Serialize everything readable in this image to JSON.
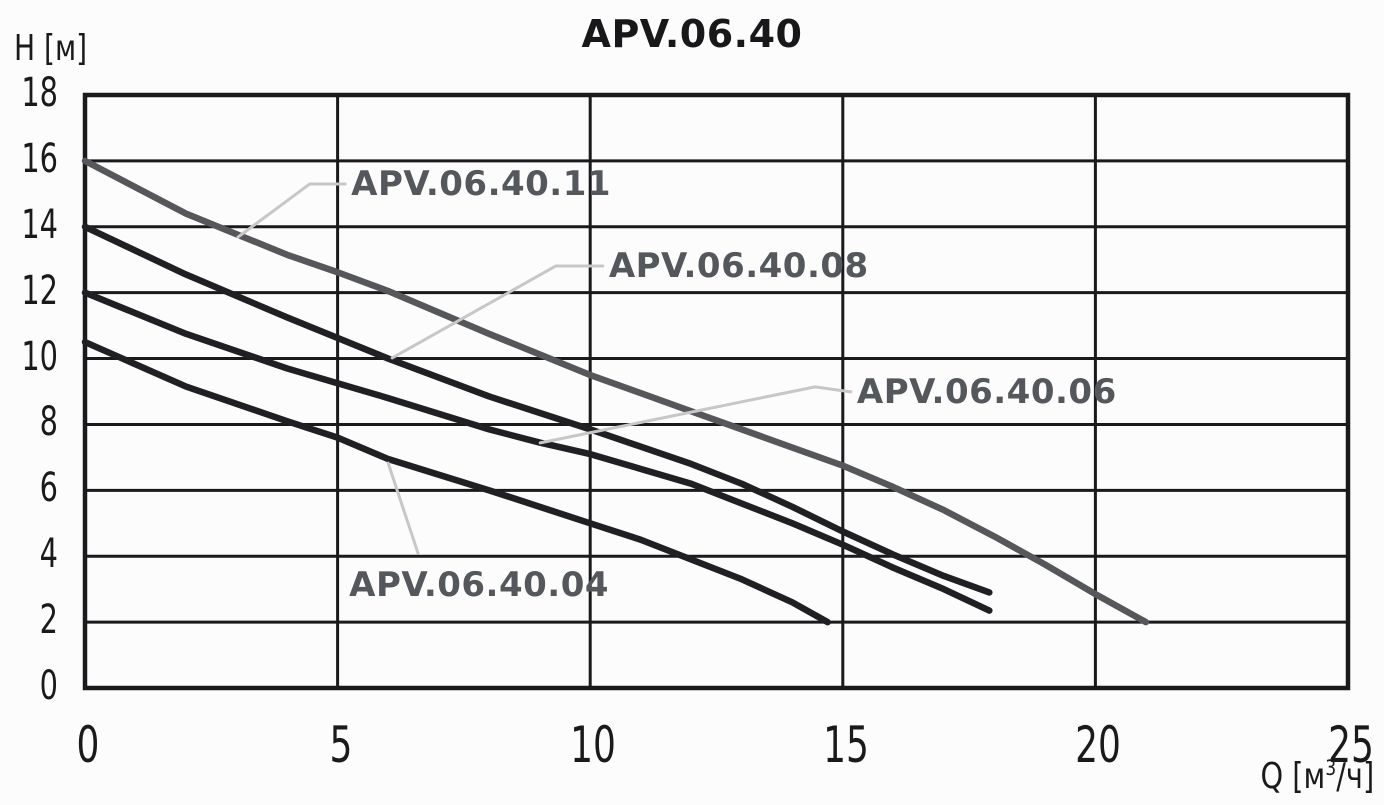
{
  "header": {
    "title": "APV.06.40"
  },
  "axes": {
    "y_label": "H [м]",
    "x_label_prefix": "Q [м",
    "x_label_sup": "3",
    "x_label_suffix": "/ч]"
  },
  "chart_data": {
    "type": "line",
    "title": "APV.06.40",
    "xlabel": "Q [м³/ч]",
    "ylabel": "H [м]",
    "xlim": [
      0,
      25
    ],
    "ylim": [
      0,
      18
    ],
    "x_ticks": [
      0,
      5,
      10,
      15,
      20,
      25
    ],
    "y_ticks": [
      18,
      16,
      14,
      12,
      10,
      8,
      6,
      4,
      2,
      0
    ],
    "grid": true,
    "legend_position": "inline-annotations",
    "colors": {
      "grid": "#1a1a1c",
      "border": "#1a1a1c",
      "leader": "#c7c7c7",
      "annotation_text": "#54575c",
      "tick_text": "#1a1a1c"
    },
    "series": [
      {
        "name": "APV.06.40.11",
        "color": "#56575b",
        "width": 6.5,
        "points": [
          [
            0,
            16
          ],
          [
            2,
            14.4
          ],
          [
            4,
            13.15
          ],
          [
            5,
            12.62
          ],
          [
            6,
            12.05
          ],
          [
            8,
            10.75
          ],
          [
            10,
            9.5
          ],
          [
            12,
            8.4
          ],
          [
            14,
            7.3
          ],
          [
            15,
            6.75
          ],
          [
            16,
            6.1
          ],
          [
            17,
            5.4
          ],
          [
            18,
            4.6
          ],
          [
            19,
            3.75
          ],
          [
            20,
            2.85
          ],
          [
            21,
            2.0
          ]
        ]
      },
      {
        "name": "APV.06.40.08",
        "color": "#202024",
        "width": 6.5,
        "points": [
          [
            0,
            14
          ],
          [
            2,
            12.55
          ],
          [
            4,
            11.25
          ],
          [
            6,
            10.0
          ],
          [
            8,
            8.85
          ],
          [
            10,
            7.85
          ],
          [
            12,
            6.8
          ],
          [
            13,
            6.2
          ],
          [
            14,
            5.5
          ],
          [
            15,
            4.75
          ],
          [
            16,
            4.05
          ],
          [
            17,
            3.4
          ],
          [
            17.9,
            2.9
          ]
        ]
      },
      {
        "name": "APV.06.40.06",
        "color": "#202024",
        "width": 6.5,
        "points": [
          [
            0,
            12
          ],
          [
            2,
            10.75
          ],
          [
            4,
            9.7
          ],
          [
            5,
            9.25
          ],
          [
            6,
            8.8
          ],
          [
            8,
            7.85
          ],
          [
            9,
            7.45
          ],
          [
            10,
            7.1
          ],
          [
            12,
            6.2
          ],
          [
            14,
            5.0
          ],
          [
            15,
            4.35
          ],
          [
            16,
            3.65
          ],
          [
            17,
            3.0
          ],
          [
            17.9,
            2.35
          ]
        ]
      },
      {
        "name": "APV.06.40.04",
        "color": "#202024",
        "width": 6.5,
        "points": [
          [
            0,
            10.5
          ],
          [
            2,
            9.15
          ],
          [
            4,
            8.1
          ],
          [
            5,
            7.6
          ],
          [
            6,
            6.95
          ],
          [
            8,
            6.0
          ],
          [
            10,
            5.0
          ],
          [
            11,
            4.5
          ],
          [
            12,
            3.9
          ],
          [
            13,
            3.3
          ],
          [
            14,
            2.6
          ],
          [
            14.7,
            2.0
          ]
        ]
      }
    ],
    "annotations": [
      {
        "id": "11",
        "label": "APV.06.40.11",
        "text_pos": [
          5.15,
          15.3
        ],
        "leader": [
          [
            5.15,
            15.3
          ],
          [
            4.45,
            15.3
          ],
          [
            3.03,
            13.69
          ]
        ]
      },
      {
        "id": "08",
        "label": "APV.06.40.08",
        "text_pos": [
          10.25,
          12.81
        ],
        "leader": [
          [
            10.25,
            12.81
          ],
          [
            9.32,
            12.81
          ],
          [
            6.08,
            10.02
          ]
        ]
      },
      {
        "id": "06",
        "label": "APV.06.40.06",
        "text_pos": [
          15.16,
          8.99
        ],
        "leader": [
          [
            15.16,
            8.99
          ],
          [
            14.45,
            9.14
          ],
          [
            9.01,
            7.44
          ]
        ]
      },
      {
        "id": "04",
        "label": "APV.06.40.04",
        "text_pos": [
          5.11,
          3.13
        ],
        "leader": [
          [
            6.59,
            4.1
          ],
          [
            6.0,
            6.83
          ]
        ]
      }
    ]
  }
}
